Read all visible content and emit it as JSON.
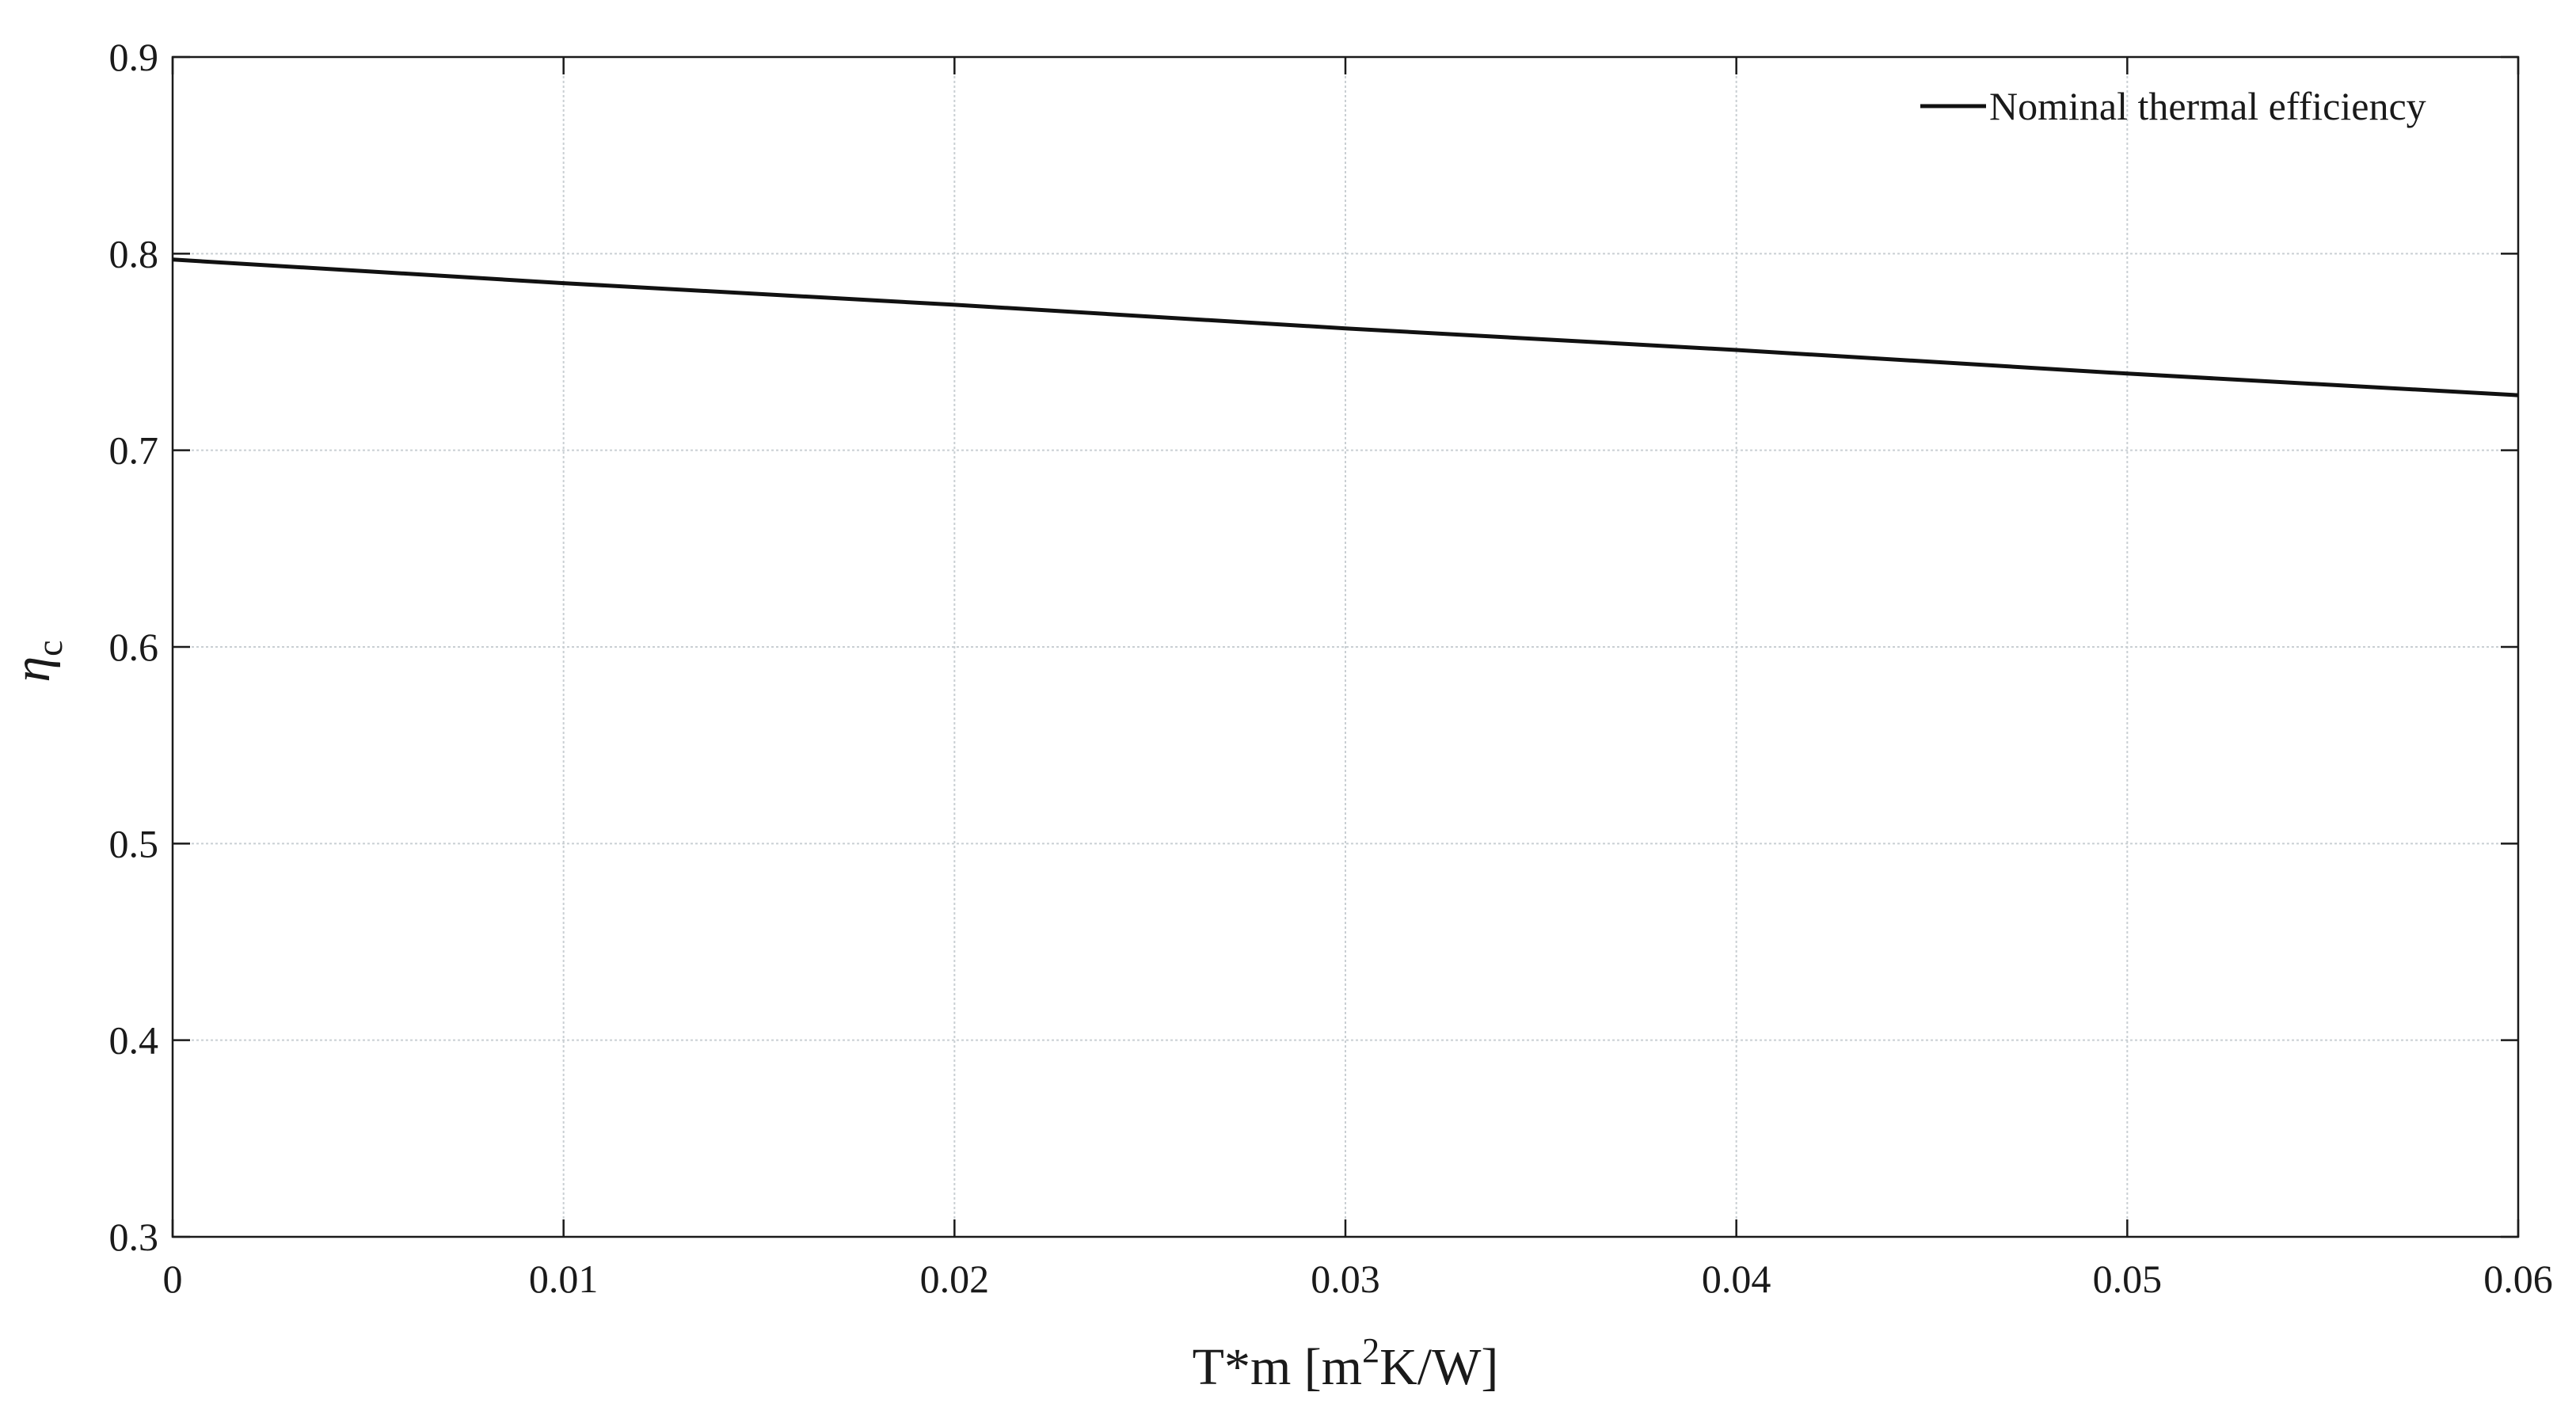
{
  "chart_data": {
    "type": "line",
    "title": "",
    "xlabel": {
      "main": "T*m [m",
      "superscript": "2",
      "rest": "K/W]"
    },
    "ylabel": {
      "symbol": "η",
      "subscript": "c"
    },
    "xlim": [
      0,
      0.06
    ],
    "ylim": [
      0.3,
      0.9
    ],
    "xticks": [
      0,
      0.01,
      0.02,
      0.03,
      0.04,
      0.05,
      0.06
    ],
    "xtick_labels": [
      "0",
      "0.01",
      "0.02",
      "0.03",
      "0.04",
      "0.05",
      "0.06"
    ],
    "yticks": [
      0.3,
      0.4,
      0.5,
      0.6,
      0.7,
      0.8,
      0.9
    ],
    "ytick_labels": [
      "0.3",
      "0.4",
      "0.5",
      "0.6",
      "0.7",
      "0.8",
      "0.9"
    ],
    "grid": true,
    "legend_position": "top-right",
    "series": [
      {
        "name": "Nominal thermal efficiency",
        "color": "#111111",
        "x": [
          0,
          0.01,
          0.02,
          0.03,
          0.04,
          0.05,
          0.06
        ],
        "y": [
          0.797,
          0.785,
          0.774,
          0.762,
          0.751,
          0.739,
          0.728
        ]
      }
    ]
  }
}
